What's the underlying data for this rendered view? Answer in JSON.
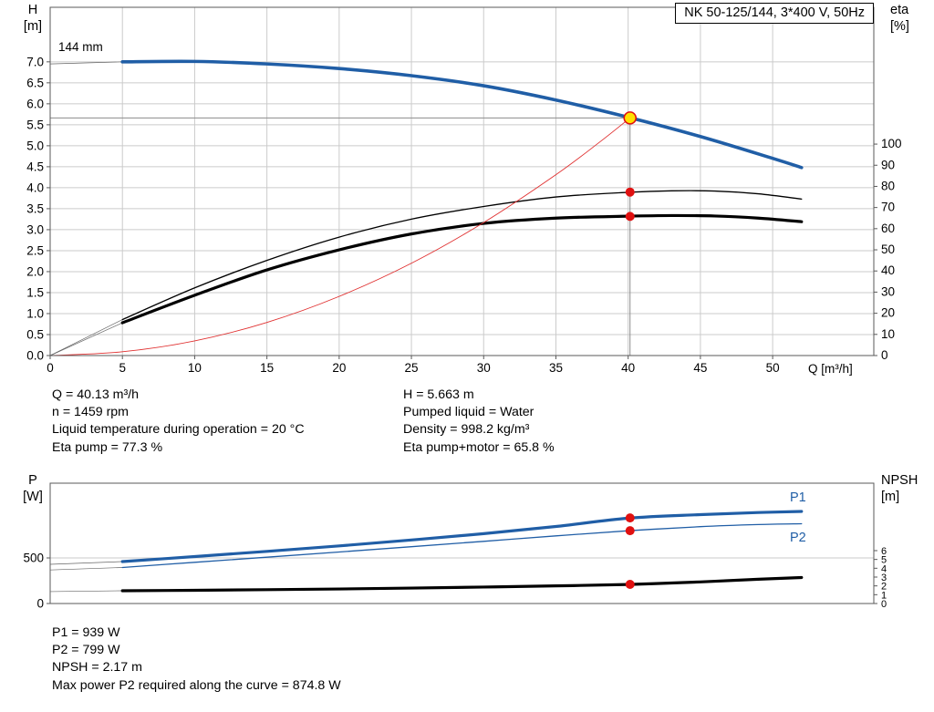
{
  "labels": {
    "impeller": "144 mm",
    "h_axis": [
      "H",
      "[m]"
    ],
    "eta_axis": [
      "eta",
      "[%]"
    ],
    "q_axis": "Q [m³/h]",
    "p_axis": [
      "P",
      "[W]"
    ],
    "npsh_axis": [
      "NPSH",
      "[m]"
    ]
  },
  "info_top": {
    "left": [
      "Q = 40.13 m³/h",
      "n = 1459 rpm",
      "Liquid temperature during operation = 20 °C",
      "Eta pump = 77.3 %"
    ],
    "right": [
      "H = 5.663 m",
      "Pumped liquid = Water",
      "Density = 998.2 kg/m³",
      "Eta pump+motor = 65.8 %"
    ]
  },
  "info_bottom": [
    "P1 = 939 W",
    "P2 = 799 W",
    "NPSH = 2.17 m",
    "Max power P2 required along the curve = 874.8 W"
  ],
  "colors": {
    "blue": "#205ea6",
    "black": "#000000",
    "red": "#e03030",
    "dot_red": "#e01010",
    "duty_yellow": "#ffe000",
    "grid": "#cbcbcb",
    "frame": "#5a5a5a",
    "crosshair": "#8c8c8c",
    "leader": "#666666"
  },
  "chart_data": [
    {
      "id": "hq-eta-chart",
      "type": "line",
      "title": "NK 50-125/144, 3*400 V, 50Hz",
      "xlabel": "Q [m³/h]",
      "xlim": [
        0,
        57
      ],
      "x_ticks": [
        0,
        5,
        10,
        15,
        20,
        25,
        30,
        35,
        40,
        45,
        50
      ],
      "x_tick_labels": [
        "0",
        "5",
        "10",
        "15",
        "20",
        "25",
        "30",
        "35",
        "40",
        "45",
        "50"
      ],
      "grid": true,
      "left_axis": {
        "label": "H [m]",
        "lim": [
          0,
          8.3
        ],
        "ticks": [
          0,
          0.5,
          1,
          1.5,
          2,
          2.5,
          3,
          3.5,
          4,
          4.5,
          5,
          5.5,
          6,
          6.5,
          7
        ],
        "tick_labels": [
          "0.0",
          "0.5",
          "1.0",
          "1.5",
          "2.0",
          "2.5",
          "3.0",
          "3.5",
          "4.0",
          "4.5",
          "5.0",
          "5.5",
          "6.0",
          "6.5",
          "7.0"
        ]
      },
      "right_axis": {
        "label": "eta [%]",
        "lim": [
          0,
          164.7
        ],
        "ticks": [
          0,
          10,
          20,
          30,
          40,
          50,
          60,
          70,
          80,
          90,
          100
        ],
        "tick_labels": [
          "0",
          "10",
          "20",
          "30",
          "40",
          "50",
          "60",
          "70",
          "80",
          "90",
          "100"
        ]
      },
      "series": [
        {
          "name": "H 144 mm",
          "axis": "left",
          "color": "blue",
          "width": 3.6,
          "x": [
            5,
            10,
            15,
            20,
            25,
            30,
            35,
            40,
            45,
            50,
            52
          ],
          "y": [
            7.0,
            7.01,
            6.95,
            6.84,
            6.67,
            6.43,
            6.09,
            5.68,
            5.22,
            4.7,
            4.48
          ]
        },
        {
          "name": "eta pump",
          "axis": "right",
          "color": "black",
          "width": 1.3,
          "x": [
            5,
            10,
            15,
            20,
            25,
            30,
            35,
            40,
            43,
            46,
            49,
            52
          ],
          "y": [
            17,
            32,
            45,
            56,
            64.5,
            70.5,
            75,
            77.2,
            77.9,
            77.8,
            76.5,
            74
          ]
        },
        {
          "name": "eta pump plus motor",
          "axis": "right",
          "color": "black",
          "width": 3.2,
          "x": [
            5,
            10,
            15,
            20,
            25,
            30,
            35,
            40,
            43,
            46,
            49,
            52
          ],
          "y": [
            15.5,
            28.5,
            40.5,
            50,
            57.5,
            62.5,
            65,
            65.9,
            66.2,
            66,
            65,
            63.3
          ]
        },
        {
          "name": "system curve",
          "axis": "left",
          "color": "red",
          "width": 0.9,
          "x": [
            0,
            5,
            10,
            15,
            20,
            25,
            30,
            35,
            38,
            40.13
          ],
          "y": [
            0,
            0.09,
            0.35,
            0.79,
            1.41,
            2.2,
            3.17,
            4.31,
            5.08,
            5.663
          ]
        }
      ],
      "leaders": [
        {
          "axis": "left",
          "x": [
            0,
            5
          ],
          "y": [
            6.95,
            7.0
          ]
        },
        {
          "axis": "right",
          "x": [
            0,
            5
          ],
          "y": [
            0,
            17
          ]
        },
        {
          "axis": "right",
          "x": [
            0,
            5
          ],
          "y": [
            0,
            15.5
          ]
        }
      ],
      "duty_point": {
        "q": 40.13,
        "h": 5.663
      },
      "markers": [
        {
          "axis": "right",
          "x": 40.13,
          "y": 77.3
        },
        {
          "axis": "right",
          "x": 40.13,
          "y": 65.8
        }
      ]
    },
    {
      "id": "power-npsh-chart",
      "type": "line",
      "title": "",
      "xlabel": "",
      "xlim": [
        0,
        57
      ],
      "x_ticks": [],
      "x_tick_labels": [],
      "grid": true,
      "left_axis": {
        "label": "P [W]",
        "lim": [
          0,
          1320
        ],
        "ticks": [
          0,
          500
        ],
        "tick_labels": [
          "0",
          "500"
        ]
      },
      "right_axis": {
        "label": "NPSH [m]",
        "lim": [
          0,
          13.65
        ],
        "ticks": [
          0,
          1,
          2,
          3,
          4,
          5,
          6
        ],
        "tick_labels": [
          "0",
          "1",
          "2",
          "3",
          "4",
          "5",
          "6"
        ]
      },
      "series": [
        {
          "name": "P1",
          "axis": "left",
          "color": "blue",
          "width": 3.2,
          "x": [
            5,
            10,
            15,
            20,
            25,
            30,
            35,
            40,
            45,
            49,
            52
          ],
          "y": [
            460,
            515,
            572,
            632,
            697,
            766,
            845,
            936,
            975,
            998,
            1010
          ]
        },
        {
          "name": "P2",
          "axis": "left",
          "color": "blue",
          "width": 1.3,
          "x": [
            5,
            10,
            15,
            20,
            25,
            30,
            35,
            40,
            45,
            49,
            52
          ],
          "y": [
            395,
            452,
            508,
            565,
            623,
            682,
            742,
            798,
            843,
            866,
            875
          ]
        },
        {
          "name": "NPSH",
          "axis": "right",
          "color": "black",
          "width": 3.2,
          "x": [
            5,
            10,
            15,
            20,
            25,
            30,
            35,
            40,
            45,
            49,
            52
          ],
          "y": [
            1.45,
            1.5,
            1.57,
            1.65,
            1.75,
            1.87,
            2.0,
            2.16,
            2.45,
            2.75,
            2.95
          ]
        }
      ],
      "leaders": [
        {
          "axis": "left",
          "x": [
            0,
            5
          ],
          "y": [
            430,
            460
          ]
        },
        {
          "axis": "left",
          "x": [
            0,
            5
          ],
          "y": [
            368,
            395
          ]
        },
        {
          "axis": "right",
          "x": [
            0,
            5
          ],
          "y": [
            1.35,
            1.45
          ]
        }
      ],
      "markers": [
        {
          "axis": "left",
          "x": 40.13,
          "y": 939
        },
        {
          "axis": "left",
          "x": 40.13,
          "y": 799
        },
        {
          "axis": "right",
          "x": 40.13,
          "y": 2.17
        }
      ]
    }
  ]
}
